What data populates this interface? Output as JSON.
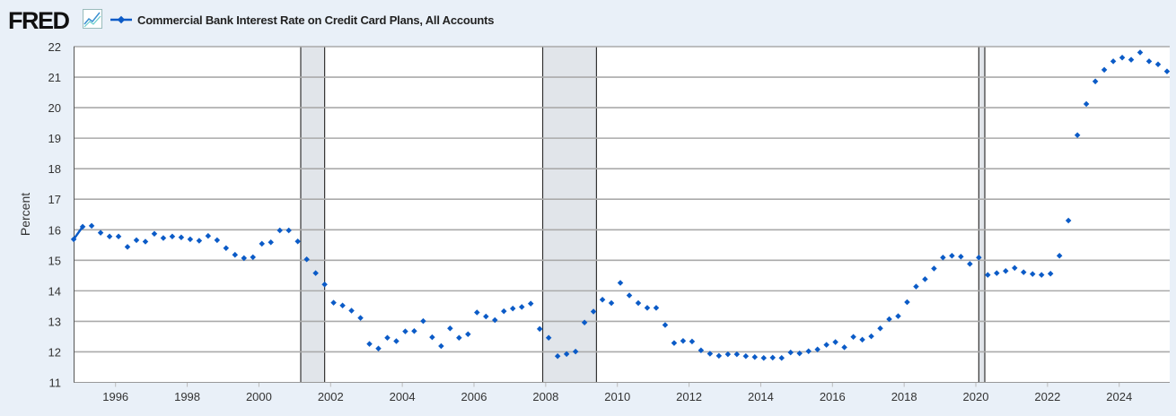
{
  "header": {
    "logo_text": "FRED",
    "logo_icon": "line-chart-icon"
  },
  "colors": {
    "series": "#0b5bc7",
    "background": "#e9f0f8",
    "plot_background": "#ffffff",
    "gridline": "#aaaaaa",
    "recession_shading": "#e1e5ea"
  },
  "chart_data": {
    "type": "scatter",
    "title": "",
    "legend_position": "top-left",
    "grid": true,
    "xlabel": "",
    "ylabel": "Percent",
    "ylim": [
      11,
      22
    ],
    "xlim": [
      "1994-11",
      "2025-07"
    ],
    "yticks": [
      "11",
      "12",
      "13",
      "14",
      "15",
      "16",
      "17",
      "18",
      "19",
      "20",
      "21",
      "22"
    ],
    "xticks": [
      "1996",
      "1998",
      "2000",
      "2002",
      "2004",
      "2006",
      "2008",
      "2010",
      "2012",
      "2014",
      "2016",
      "2018",
      "2020",
      "2022",
      "2024"
    ],
    "recessions": [
      [
        "2001-03",
        "2001-11"
      ],
      [
        "2007-12",
        "2009-06"
      ],
      [
        "2020-02",
        "2020-04"
      ]
    ],
    "series": [
      {
        "name": "Commercial Bank Interest Rate on Credit Card Plans, All Accounts",
        "x": [
          "1994-11",
          "1995-02",
          "1995-05",
          "1995-08",
          "1995-11",
          "1996-02",
          "1996-05",
          "1996-08",
          "1996-11",
          "1997-02",
          "1997-05",
          "1997-08",
          "1997-11",
          "1998-02",
          "1998-05",
          "1998-08",
          "1998-11",
          "1999-02",
          "1999-05",
          "1999-08",
          "1999-11",
          "2000-02",
          "2000-05",
          "2000-08",
          "2000-11",
          "2001-02",
          "2001-05",
          "2001-08",
          "2001-11",
          "2002-02",
          "2002-05",
          "2002-08",
          "2002-11",
          "2003-02",
          "2003-05",
          "2003-08",
          "2003-11",
          "2004-02",
          "2004-05",
          "2004-08",
          "2004-11",
          "2005-02",
          "2005-05",
          "2005-08",
          "2005-11",
          "2006-02",
          "2006-05",
          "2006-08",
          "2006-11",
          "2007-02",
          "2007-05",
          "2007-08",
          "2007-11",
          "2008-02",
          "2008-05",
          "2008-08",
          "2008-11",
          "2009-02",
          "2009-05",
          "2009-08",
          "2009-11",
          "2010-02",
          "2010-05",
          "2010-08",
          "2010-11",
          "2011-02",
          "2011-05",
          "2011-08",
          "2011-11",
          "2012-02",
          "2012-05",
          "2012-08",
          "2012-11",
          "2013-02",
          "2013-05",
          "2013-08",
          "2013-11",
          "2014-02",
          "2014-05",
          "2014-08",
          "2014-11",
          "2015-02",
          "2015-05",
          "2015-08",
          "2015-11",
          "2016-02",
          "2016-05",
          "2016-08",
          "2016-11",
          "2017-02",
          "2017-05",
          "2017-08",
          "2017-11",
          "2018-02",
          "2018-05",
          "2018-08",
          "2018-11",
          "2019-02",
          "2019-05",
          "2019-08",
          "2019-11",
          "2020-02",
          "2020-05",
          "2020-08",
          "2020-11",
          "2021-02",
          "2021-05",
          "2021-08",
          "2021-11",
          "2022-02",
          "2022-05",
          "2022-08",
          "2022-11",
          "2023-02",
          "2023-05",
          "2023-08",
          "2023-11",
          "2024-02",
          "2024-05",
          "2024-08",
          "2024-11",
          "2025-02",
          "2025-05"
        ],
        "values": [
          15.69,
          16.1,
          16.13,
          15.9,
          15.78,
          15.78,
          15.44,
          15.66,
          15.61,
          15.87,
          15.73,
          15.78,
          15.75,
          15.69,
          15.64,
          15.8,
          15.66,
          15.4,
          15.18,
          15.07,
          15.1,
          15.54,
          15.59,
          15.98,
          15.98,
          15.62,
          15.03,
          14.58,
          14.21,
          13.61,
          13.52,
          13.35,
          13.11,
          12.26,
          12.11,
          12.46,
          12.35,
          12.67,
          12.68,
          13.01,
          12.48,
          12.19,
          12.77,
          12.46,
          12.58,
          13.29,
          13.16,
          13.04,
          13.33,
          13.42,
          13.47,
          13.58,
          12.75,
          12.46,
          11.86,
          11.93,
          12.01,
          12.96,
          13.32,
          13.71,
          13.6,
          14.26,
          13.85,
          13.6,
          13.44,
          13.44,
          12.88,
          12.29,
          12.36,
          12.34,
          12.05,
          11.94,
          11.87,
          11.92,
          11.92,
          11.86,
          11.83,
          11.8,
          11.81,
          11.8,
          11.98,
          11.95,
          12.02,
          12.08,
          12.23,
          12.32,
          12.15,
          12.49,
          12.4,
          12.51,
          12.77,
          13.07,
          13.17,
          13.63,
          14.14,
          14.38,
          14.73,
          15.09,
          15.15,
          15.12,
          14.88,
          15.09,
          14.52,
          14.58,
          14.65,
          14.75,
          14.61,
          14.55,
          14.52,
          14.56,
          15.15,
          16.3,
          19.1,
          20.12,
          20.86,
          21.24,
          21.52,
          21.64,
          21.57,
          21.81,
          21.52,
          21.42,
          21.19
        ]
      }
    ]
  }
}
